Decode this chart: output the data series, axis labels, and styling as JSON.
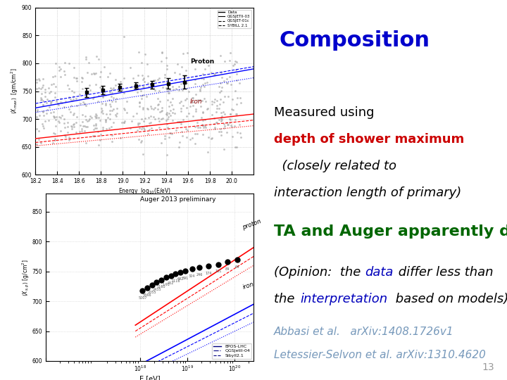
{
  "title": "Composition",
  "title_color": "#0000CC",
  "title_fontsize": 22,
  "body_fontsize": 13,
  "line3_fontsize": 16,
  "opinion_fontsize": 13,
  "ref_fontsize": 11,
  "line3": "TA and Auger apparently differ",
  "line3_color": "#006600",
  "ref1": "Abbasi et al.   arXiv:1408.1726v1",
  "ref2": "Letessier-Selvon et al. arXiv:1310.4620",
  "ref_color": "#7799BB",
  "page_number": "13",
  "page_color": "#999999",
  "page_fontsize": 10,
  "bg_color": "#ffffff"
}
